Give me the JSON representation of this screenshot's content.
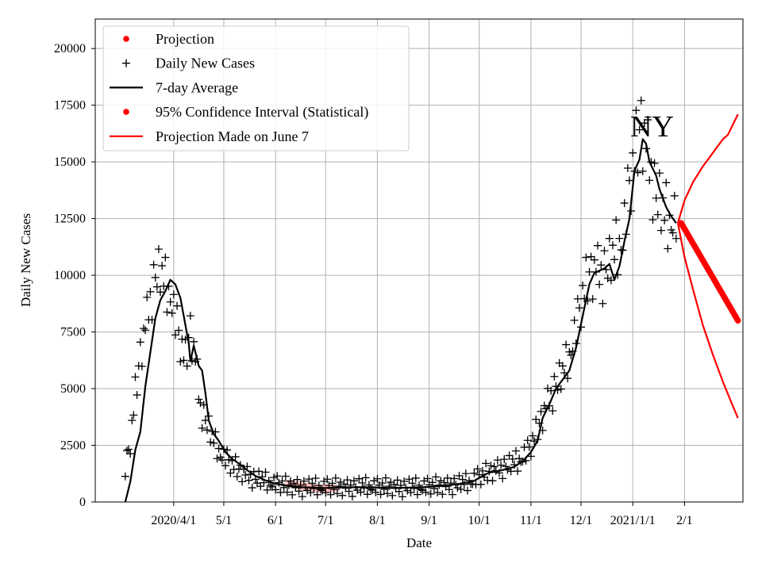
{
  "chart_data": {
    "type": "line",
    "xlabel": "Date",
    "ylabel": "Daily New Cases",
    "annotation": "NY",
    "xlim": [
      -16,
      372
    ],
    "ylim": [
      0,
      21300
    ],
    "grid": true,
    "legend_position": "top-left",
    "x_ticks": [
      {
        "day": 31,
        "label": "2020/4/1"
      },
      {
        "day": 61,
        "label": "5/1"
      },
      {
        "day": 92,
        "label": "6/1"
      },
      {
        "day": 122,
        "label": "7/1"
      },
      {
        "day": 153,
        "label": "8/1"
      },
      {
        "day": 184,
        "label": "9/1"
      },
      {
        "day": 214,
        "label": "10/1"
      },
      {
        "day": 245,
        "label": "11/1"
      },
      {
        "day": 275,
        "label": "12/1"
      },
      {
        "day": 306,
        "label": "2021/1/1"
      },
      {
        "day": 337,
        "label": "2/1"
      }
    ],
    "y_ticks": [
      0,
      2500,
      5000,
      7500,
      10000,
      12500,
      15000,
      17500,
      20000
    ],
    "legend": [
      {
        "label": "Projection",
        "style": "dot",
        "color": "#ff0000"
      },
      {
        "label": "Daily New Cases",
        "style": "plus",
        "color": "#000000"
      },
      {
        "label": "7-day Average",
        "style": "line",
        "color": "#000000"
      },
      {
        "label": "95% Confidence Interval (Statistical)",
        "style": "dot",
        "color": "#ff0000"
      },
      {
        "label": "Projection Made on June 7",
        "style": "line",
        "color": "#ff0000"
      }
    ],
    "series": [
      {
        "name": "Daily New Cases",
        "style": "plus",
        "color": "#000000",
        "anchors": [
          [
            2,
            1400
          ],
          [
            5,
            2600
          ],
          [
            8,
            4700
          ],
          [
            11,
            6500
          ],
          [
            14,
            7700
          ],
          [
            17,
            9000
          ],
          [
            20,
            9900
          ],
          [
            23,
            10000
          ],
          [
            26,
            9500
          ],
          [
            29,
            9100
          ],
          [
            32,
            8000
          ],
          [
            35,
            7000
          ],
          [
            38,
            6200
          ],
          [
            41,
            7600
          ],
          [
            44,
            6300
          ],
          [
            47,
            4200
          ],
          [
            50,
            3600
          ],
          [
            53,
            3000
          ],
          [
            56,
            2500
          ],
          [
            59,
            2100
          ],
          [
            62,
            1900
          ],
          [
            66,
            1600
          ],
          [
            70,
            1400
          ],
          [
            75,
            1200
          ],
          [
            80,
            1000
          ],
          [
            85,
            900
          ],
          [
            92,
            780
          ],
          [
            100,
            700
          ],
          [
            108,
            650
          ],
          [
            115,
            640
          ],
          [
            122,
            640
          ],
          [
            130,
            650
          ],
          [
            140,
            660
          ],
          [
            150,
            660
          ],
          [
            160,
            650
          ],
          [
            170,
            640
          ],
          [
            180,
            650
          ],
          [
            190,
            700
          ],
          [
            200,
            760
          ],
          [
            208,
            850
          ],
          [
            214,
            1100
          ],
          [
            220,
            1300
          ],
          [
            226,
            1500
          ],
          [
            232,
            1600
          ],
          [
            238,
            1800
          ],
          [
            244,
            2300
          ],
          [
            248,
            3000
          ],
          [
            252,
            3800
          ],
          [
            256,
            4600
          ],
          [
            260,
            5100
          ],
          [
            264,
            5600
          ],
          [
            268,
            6400
          ],
          [
            272,
            7600
          ],
          [
            276,
            9000
          ],
          [
            280,
            10000
          ],
          [
            284,
            10300
          ],
          [
            288,
            10100
          ],
          [
            292,
            10400
          ],
          [
            296,
            11000
          ],
          [
            300,
            11600
          ],
          [
            304,
            13800
          ],
          [
            308,
            15400
          ],
          [
            311,
            16600
          ],
          [
            314,
            15800
          ],
          [
            317,
            14600
          ],
          [
            320,
            13400
          ],
          [
            324,
            12700
          ],
          [
            328,
            12300
          ],
          [
            332,
            12500
          ]
        ],
        "offsets": [
          -300,
          600,
          -500,
          800,
          200,
          -700,
          400,
          -200,
          900,
          -600,
          100,
          500,
          -800,
          300,
          -100,
          700,
          -400,
          200,
          -900,
          600,
          0,
          -300,
          800,
          -500,
          400,
          -100,
          900,
          -700,
          200,
          -200
        ],
        "amp_ratio": 0.1,
        "day_start": 2,
        "day_end": 332
      },
      {
        "name": "7-day Average",
        "style": "line",
        "color": "#000000",
        "points": [
          [
            2,
            0
          ],
          [
            5,
            900
          ],
          [
            8,
            2300
          ],
          [
            11,
            3100
          ],
          [
            14,
            5100
          ],
          [
            17,
            6600
          ],
          [
            20,
            8100
          ],
          [
            23,
            8900
          ],
          [
            26,
            9300
          ],
          [
            29,
            9800
          ],
          [
            32,
            9600
          ],
          [
            35,
            9000
          ],
          [
            38,
            7800
          ],
          [
            40,
            7000
          ],
          [
            41,
            6200
          ],
          [
            43,
            6900
          ],
          [
            46,
            6000
          ],
          [
            48,
            5800
          ],
          [
            50,
            4800
          ],
          [
            52,
            3600
          ],
          [
            55,
            3000
          ],
          [
            58,
            2700
          ],
          [
            62,
            2200
          ],
          [
            66,
            1900
          ],
          [
            70,
            1700
          ],
          [
            75,
            1400
          ],
          [
            80,
            1150
          ],
          [
            86,
            950
          ],
          [
            92,
            800
          ],
          [
            100,
            700
          ],
          [
            108,
            650
          ],
          [
            115,
            630
          ],
          [
            122,
            620
          ],
          [
            130,
            640
          ],
          [
            140,
            650
          ],
          [
            150,
            650
          ],
          [
            160,
            620
          ],
          [
            170,
            630
          ],
          [
            180,
            650
          ],
          [
            190,
            700
          ],
          [
            200,
            780
          ],
          [
            210,
            900
          ],
          [
            215,
            1100
          ],
          [
            220,
            1300
          ],
          [
            225,
            1350
          ],
          [
            230,
            1450
          ],
          [
            235,
            1550
          ],
          [
            240,
            1800
          ],
          [
            245,
            2200
          ],
          [
            249,
            2700
          ],
          [
            252,
            3700
          ],
          [
            256,
            4300
          ],
          [
            260,
            5000
          ],
          [
            264,
            5400
          ],
          [
            268,
            5800
          ],
          [
            272,
            6800
          ],
          [
            276,
            8200
          ],
          [
            280,
            9600
          ],
          [
            283,
            10100
          ],
          [
            286,
            10200
          ],
          [
            289,
            10300
          ],
          [
            292,
            10500
          ],
          [
            295,
            9800
          ],
          [
            298,
            10400
          ],
          [
            301,
            11500
          ],
          [
            304,
            12500
          ],
          [
            307,
            14600
          ],
          [
            310,
            15100
          ],
          [
            312,
            16000
          ],
          [
            314,
            15800
          ],
          [
            316,
            15000
          ],
          [
            318,
            14700
          ],
          [
            320,
            14400
          ],
          [
            322,
            13800
          ],
          [
            324,
            13400
          ],
          [
            326,
            13000
          ],
          [
            329,
            12600
          ],
          [
            332,
            12300
          ]
        ]
      },
      {
        "name": "Projection",
        "style": "dot",
        "color": "#ff0000",
        "day_start": 335,
        "day_end": 369,
        "start_value": 12300,
        "end_value": 8000
      },
      {
        "name": "Projection Made on June 7",
        "style": "line",
        "color": "#ff0000",
        "bands": [
          {
            "points": [
              [
                333,
                12300
              ],
              [
                337,
                13300
              ],
              [
                342,
                14100
              ],
              [
                348,
                14800
              ],
              [
                354,
                15400
              ],
              [
                360,
                16000
              ],
              [
                363,
                16200
              ],
              [
                369,
                17100
              ]
            ]
          },
          {
            "points": [
              [
                333,
                12300
              ],
              [
                337,
                10800
              ],
              [
                342,
                9400
              ],
              [
                348,
                7800
              ],
              [
                354,
                6500
              ],
              [
                360,
                5300
              ],
              [
                365,
                4400
              ],
              [
                369,
                3700
              ]
            ]
          }
        ]
      },
      {
        "name": "95% Confidence Interval (Statistical)",
        "style": "dot",
        "color": "#ffb3b3",
        "day_start": 100,
        "day_end": 128,
        "values": [
          820,
          760,
          700,
          650,
          610,
          590,
          600,
          620
        ]
      }
    ]
  }
}
